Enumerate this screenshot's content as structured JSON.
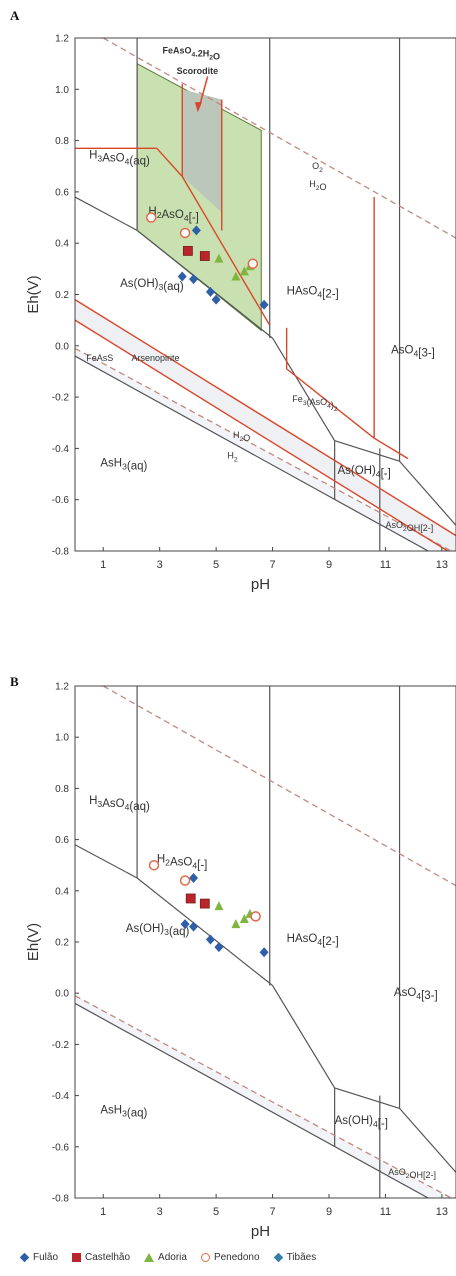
{
  "colors": {
    "Fulão": "#2f5fa8",
    "Castelhão": "#b8262b",
    "Adoria": "#7fb540",
    "Penedono": "#e0694a",
    "Tibães": "#2f7fa8",
    "scorodite_fill": "#c9e1b0",
    "boundary_gray": "#555555",
    "boundary_red": "#d9472b"
  },
  "chart_data": [
    {
      "panel": "A",
      "type": "scatter",
      "xlabel": "pH",
      "ylabel": "Eh(V)",
      "xlim": [
        0,
        13.5
      ],
      "ylim": [
        -0.8,
        1.2
      ],
      "xticks": [
        1,
        3,
        5,
        7,
        9,
        11,
        13
      ],
      "yticks": [
        -0.8,
        -0.6,
        -0.4,
        -0.2,
        0.0,
        0.2,
        0.4,
        0.6,
        0.8,
        1.0,
        1.2
      ],
      "ytick_labels": [
        "-0.8",
        "-0.6",
        "-0.4",
        "-0.2",
        "0.0",
        "0.2",
        "0.4",
        "0.6",
        "0.8",
        "1.0",
        "1.2"
      ],
      "grid": false,
      "species_labels": [
        {
          "text": "H3AsO4(aq)",
          "x": 0.5,
          "y": 0.73
        },
        {
          "text": "H2AsO4[-]",
          "x": 2.6,
          "y": 0.51
        },
        {
          "text": "HAsO4[2-]",
          "x": 7.5,
          "y": 0.2
        },
        {
          "text": "AsO4[3-]",
          "x": 11.2,
          "y": -0.03
        },
        {
          "text": "As(OH)3(aq)",
          "x": 1.6,
          "y": 0.23
        },
        {
          "text": "AsH3(aq)",
          "x": 0.9,
          "y": -0.47
        },
        {
          "text": "As(OH)4[-]",
          "x": 9.3,
          "y": -0.5
        },
        {
          "text": "AsO2OH[2-]",
          "x": 11.0,
          "y": -0.71
        },
        {
          "text": "FeAsS",
          "x": 0.4,
          "y": -0.06
        },
        {
          "text": "Arsenopirite",
          "x": 2.0,
          "y": -0.06
        },
        {
          "text": "Fe3(AsO4)2",
          "x": 7.7,
          "y": -0.22
        },
        {
          "text": "FeAsO4.2H2O",
          "x": 3.1,
          "y": 1.14
        },
        {
          "text": "Scorodite",
          "x": 3.6,
          "y": 1.06
        },
        {
          "text": "O2",
          "x": 8.4,
          "y": 0.69
        },
        {
          "text": "H2O",
          "x": 8.3,
          "y": 0.62
        },
        {
          "text": "H2O",
          "x": 5.6,
          "y": -0.36
        },
        {
          "text": "H2",
          "x": 5.4,
          "y": -0.44
        }
      ],
      "series": [
        {
          "name": "Fulão",
          "marker": "diamond",
          "points": [
            [
              4.3,
              0.45
            ],
            [
              3.8,
              0.27
            ],
            [
              4.2,
              0.26
            ],
            [
              4.8,
              0.21
            ],
            [
              5.0,
              0.18
            ],
            [
              6.7,
              0.16
            ]
          ]
        },
        {
          "name": "Castelhão",
          "marker": "square",
          "points": [
            [
              4.0,
              0.37
            ],
            [
              4.6,
              0.35
            ]
          ]
        },
        {
          "name": "Adoria",
          "marker": "triangle",
          "points": [
            [
              5.1,
              0.34
            ],
            [
              5.7,
              0.27
            ],
            [
              6.0,
              0.29
            ],
            [
              6.2,
              0.31
            ]
          ]
        },
        {
          "name": "Penedono",
          "marker": "circle-open",
          "points": [
            [
              2.7,
              0.5
            ],
            [
              3.9,
              0.44
            ],
            [
              6.3,
              0.32
            ]
          ]
        }
      ]
    },
    {
      "panel": "B",
      "type": "scatter",
      "xlabel": "pH",
      "ylabel": "Eh(V)",
      "xlim": [
        0,
        13.5
      ],
      "ylim": [
        -0.8,
        1.2
      ],
      "xticks": [
        1,
        3,
        5,
        7,
        9,
        11,
        13
      ],
      "yticks": [
        -0.8,
        -0.6,
        -0.4,
        -0.2,
        0.0,
        0.2,
        0.4,
        0.6,
        0.8,
        1.0,
        1.2
      ],
      "ytick_labels": [
        "-0.8",
        "-0.6",
        "-0.4",
        "-0.2",
        "0.0",
        "0.2",
        "0.4",
        "0.6",
        "0.8",
        "1.0",
        "1.2"
      ],
      "grid": false,
      "species_labels": [
        {
          "text": "H3AsO4(aq)",
          "x": 0.5,
          "y": 0.74
        },
        {
          "text": "H2AsO4[-]",
          "x": 2.9,
          "y": 0.51
        },
        {
          "text": "HAsO4[2-]",
          "x": 7.5,
          "y": 0.2
        },
        {
          "text": "AsO4[3-]",
          "x": 11.3,
          "y": -0.01
        },
        {
          "text": "As(OH)3(aq)",
          "x": 1.8,
          "y": 0.24
        },
        {
          "text": "AsH3(aq)",
          "x": 0.9,
          "y": -0.47
        },
        {
          "text": "As(OH)4[-]",
          "x": 9.2,
          "y": -0.51
        },
        {
          "text": "AsO2OH[2-]",
          "x": 11.1,
          "y": -0.71
        }
      ],
      "series": [
        {
          "name": "Fulão",
          "marker": "diamond",
          "points": [
            [
              4.2,
              0.45
            ],
            [
              3.9,
              0.27
            ],
            [
              4.2,
              0.26
            ],
            [
              4.8,
              0.21
            ],
            [
              5.1,
              0.18
            ],
            [
              6.7,
              0.16
            ]
          ]
        },
        {
          "name": "Castelhão",
          "marker": "square",
          "points": [
            [
              4.1,
              0.37
            ],
            [
              4.6,
              0.35
            ]
          ]
        },
        {
          "name": "Adoria",
          "marker": "triangle",
          "points": [
            [
              5.1,
              0.34
            ],
            [
              5.7,
              0.27
            ],
            [
              6.0,
              0.29
            ],
            [
              6.2,
              0.31
            ]
          ]
        },
        {
          "name": "Penedono",
          "marker": "circle-open",
          "points": [
            [
              2.8,
              0.5
            ],
            [
              3.9,
              0.44
            ],
            [
              6.4,
              0.3
            ]
          ]
        }
      ]
    }
  ],
  "panel_letters": [
    "A",
    "B"
  ],
  "legend": [
    {
      "label": "Fulão",
      "marker": "diamond"
    },
    {
      "label": "Castelhão",
      "marker": "square"
    },
    {
      "label": "Adoria",
      "marker": "triangle"
    },
    {
      "label": "Penedono",
      "marker": "circle-open"
    },
    {
      "label": "Tibães",
      "marker": "diamond"
    }
  ]
}
